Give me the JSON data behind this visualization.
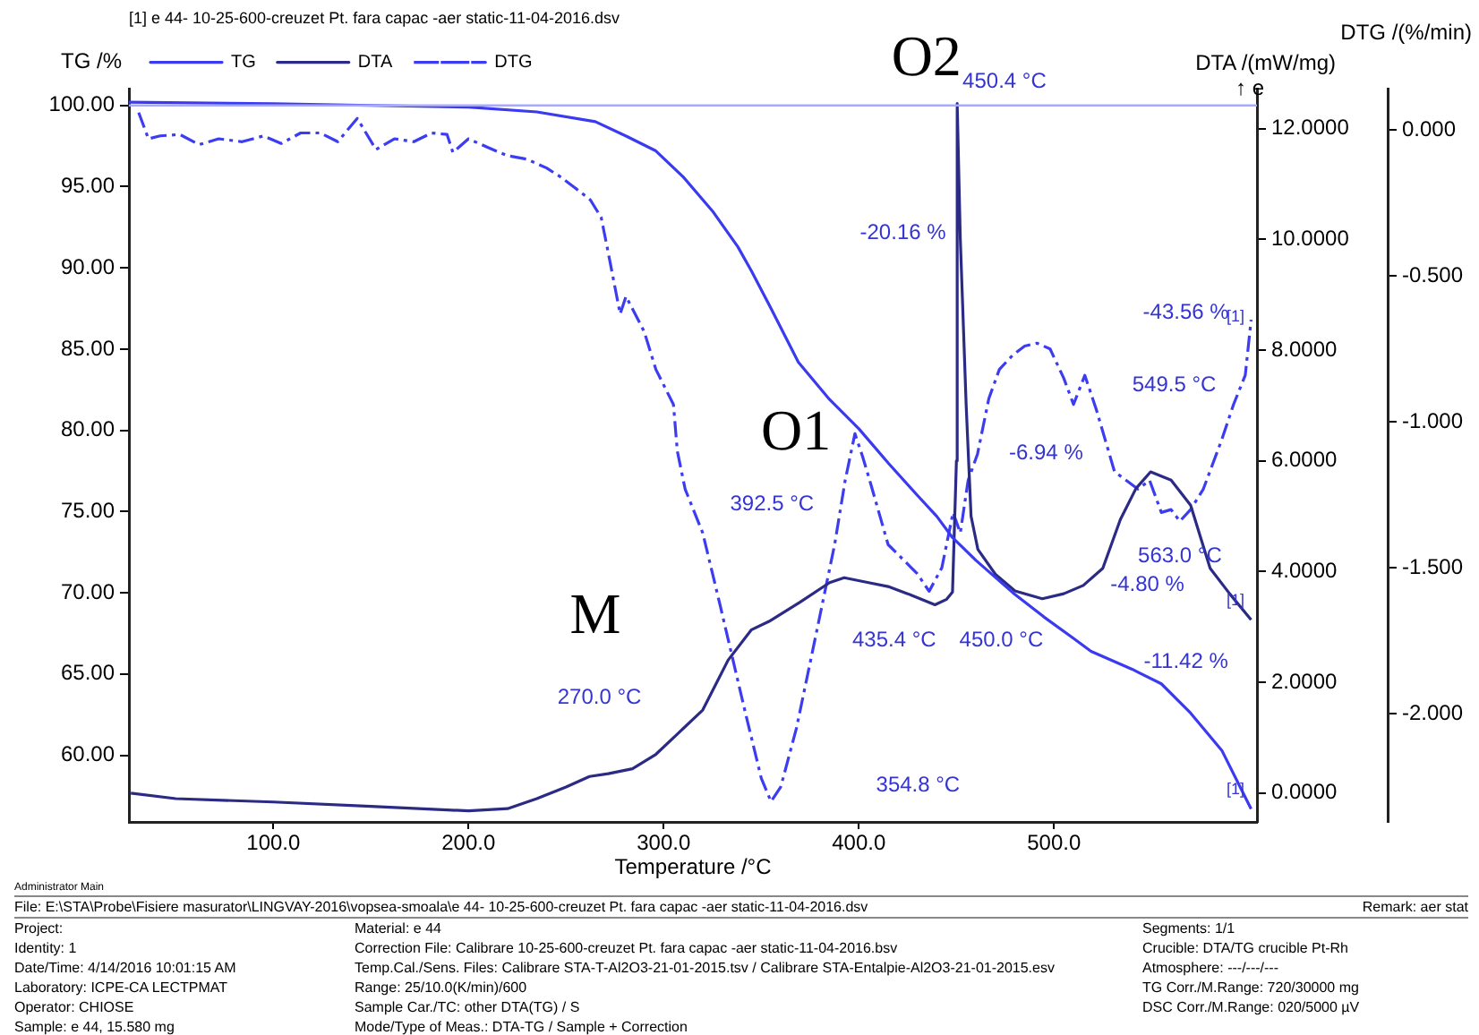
{
  "chart_data": {
    "type": "line",
    "xlabel": "Temperature /°C",
    "ylabel": "TG /%",
    "y2label": "DTA /(mW/mg)\n↑ e",
    "y3label": "DTG /(%/min)",
    "legend_title": "[1] e 44- 10-25-600-creuzet Pt. fara capac -aer static-11-04-2016.dsv",
    "legend": "top left",
    "xlim": [
      26,
      604
    ],
    "xticks": [
      {
        "value": 100,
        "label": "100.0"
      },
      {
        "value": 200,
        "label": "200.0"
      },
      {
        "value": 300,
        "label": "300.0"
      },
      {
        "value": 400,
        "label": "400.0"
      },
      {
        "value": 500,
        "label": "500.0"
      }
    ],
    "ylim": [
      55.9,
      101
    ],
    "yticks": [
      {
        "value": 60,
        "label": "60.00"
      },
      {
        "value": 65,
        "label": "65.00"
      },
      {
        "value": 70,
        "label": "70.00"
      },
      {
        "value": 75,
        "label": "75.00"
      },
      {
        "value": 80,
        "label": "80.00"
      },
      {
        "value": 85,
        "label": "85.00"
      },
      {
        "value": 90,
        "label": "90.00"
      },
      {
        "value": 95,
        "label": "95.00"
      },
      {
        "value": 100,
        "label": "100.00"
      }
    ],
    "y2lim": [
      -0.52,
      12.71
    ],
    "y2ticks": [
      {
        "value": 0,
        "label": "0.0000"
      },
      {
        "value": 2,
        "label": "2.0000"
      },
      {
        "value": 4,
        "label": "4.0000"
      },
      {
        "value": 6,
        "label": "6.0000"
      },
      {
        "value": 8,
        "label": "8.0000"
      },
      {
        "value": 10,
        "label": "10.0000"
      },
      {
        "value": 12,
        "label": "12.0000"
      }
    ],
    "y3lim": [
      -2.37,
      0.14
    ],
    "y3ticks": [
      {
        "value": 0,
        "label": "0.000"
      },
      {
        "value": -0.5,
        "label": "-0.500"
      },
      {
        "value": -1,
        "label": "-1.000"
      },
      {
        "value": -1.5,
        "label": "-1.500"
      },
      {
        "value": -2,
        "label": "-2.000"
      }
    ],
    "series": [
      {
        "name": "TG",
        "color": "#3a3af0",
        "axis": "y",
        "line_style": "solid",
        "x": [
          26,
          100,
          150,
          200,
          235,
          265,
          281,
          296,
          310,
          325,
          338,
          345,
          355,
          369,
          385,
          400,
          415,
          430,
          440,
          448,
          460,
          479,
          495,
          510,
          519,
          540,
          555,
          570,
          586,
          601
        ],
        "values": [
          100.2,
          100.1,
          100.0,
          99.9,
          99.6,
          99.0,
          98.1,
          97.2,
          95.6,
          93.5,
          91.3,
          89.8,
          87.5,
          84.2,
          81.9,
          80.1,
          78.0,
          76.0,
          74.7,
          73.4,
          72.0,
          70.0,
          68.5,
          67.2,
          66.4,
          65.3,
          64.4,
          62.6,
          60.3,
          56.7
        ]
      },
      {
        "name": "DTA",
        "color": "#2b2b86",
        "axis": "y2",
        "line_style": "solid",
        "x": [
          27,
          50,
          100,
          150,
          200,
          220,
          235,
          250,
          262,
          271.6,
          284,
          296,
          308,
          320,
          333,
          345,
          354,
          370,
          385,
          392.5,
          405,
          415,
          425,
          439,
          445,
          448,
          450,
          450.4,
          452,
          455,
          457.5,
          461,
          470,
          480,
          494,
          505,
          515,
          525,
          534,
          542,
          549.5,
          560,
          570,
          580,
          590,
          601
        ],
        "values": [
          0.0,
          -0.1,
          -0.16,
          -0.24,
          -0.32,
          -0.28,
          -0.1,
          0.11,
          0.3,
          0.35,
          0.44,
          0.7,
          1.1,
          1.5,
          2.4,
          2.95,
          3.1,
          3.45,
          3.8,
          3.89,
          3.8,
          3.73,
          3.6,
          3.4,
          3.5,
          3.63,
          6,
          12.45,
          10,
          7,
          5,
          4.4,
          3.95,
          3.65,
          3.51,
          3.6,
          3.75,
          4.06,
          4.94,
          5.5,
          5.8,
          5.65,
          5.2,
          4.06,
          3.6,
          3.13
        ]
      },
      {
        "name": "DTG",
        "color": "#3c3cf0",
        "axis": "y3",
        "line_style": "dashed",
        "x": [
          31,
          36,
          42,
          52,
          62,
          72,
          84,
          95,
          104,
          114,
          124,
          133,
          143,
          152.6,
          162,
          172,
          181,
          189,
          192,
          200,
          210,
          219.6,
          230,
          240,
          247,
          255,
          262.5,
          268,
          271.6,
          277.7,
          280.7,
          290,
          296,
          305,
          307,
          311,
          320,
          329,
          342,
          350,
          355,
          360,
          368,
          378,
          387.6,
          393,
          398,
          402,
          406,
          415,
          424,
          430,
          436,
          442.5,
          448.3,
          452,
          456,
          460.8,
          466.6,
          472,
          479,
          485,
          491.3,
          498,
          505,
          510,
          515.8,
          521.8,
          531,
          537,
          543,
          549,
          555,
          560,
          564.5,
          570,
          576.5,
          586,
          592,
          598,
          601
        ],
        "values": [
          0.06,
          -0.03,
          -0.02,
          -0.015,
          -0.05,
          -0.03,
          -0.04,
          -0.02,
          -0.046,
          -0.01,
          -0.01,
          -0.04,
          0.04,
          -0.067,
          -0.03,
          -0.04,
          -0.01,
          -0.015,
          -0.077,
          -0.03,
          -0.06,
          -0.087,
          -0.1,
          -0.13,
          -0.16,
          -0.2,
          -0.24,
          -0.3,
          -0.42,
          -0.63,
          -0.57,
          -0.69,
          -0.82,
          -0.94,
          -1.1,
          -1.23,
          -1.38,
          -1.63,
          -2.0,
          -2.22,
          -2.3,
          -2.25,
          -2.05,
          -1.73,
          -1.42,
          -1.2,
          -1.04,
          -1.12,
          -1.21,
          -1.42,
          -1.48,
          -1.52,
          -1.58,
          -1.5,
          -1.31,
          -1.38,
          -1.2,
          -1.11,
          -0.92,
          -0.82,
          -0.77,
          -0.74,
          -0.73,
          -0.75,
          -0.85,
          -0.94,
          -0.84,
          -0.96,
          -1.17,
          -1.2,
          -1.23,
          -1.2,
          -1.31,
          -1.3,
          -1.34,
          -1.3,
          -1.23,
          -1.06,
          -0.94,
          -0.84,
          -0.65
        ]
      }
    ],
    "ref_lines": [
      {
        "axis": "y",
        "value": 100,
        "color": "#a8a8ff"
      }
    ],
    "annotations": [
      "O2",
      "O1",
      "M",
      "450.4 °C",
      "392.5 °C",
      "435.4 °C",
      "450.0 °C",
      "354.8 °C",
      "270.0 °C",
      "-20.16 %",
      "-6.94 %",
      "-4.80 %",
      "-43.56 %",
      "-11.42 %",
      "549.5 °C",
      "563.0 °C",
      "[1]",
      "[1]",
      "[1]",
      "Administrator Main",
      "File: E:\\STA\\Probe\\Fisiere masurator\\LINGVAY-2016\\vopsea-smoala\\e 44- 10-25-600-creuzet Pt. fara capac -aer static-11-04-2016.dsv",
      "Remark: aer stat",
      "Project:",
      "Material: e 44",
      "Segments: 1/1",
      "Identity: 1",
      "Correction File: Calibrare 10-25-600-creuzet Pt. fara capac -aer static-11-04-2016.bsv",
      "Crucible: DTA/TG crucible Pt-Rh",
      "Date/Time: 4/14/2016 10:01:15 AM",
      "Temp.Cal./Sens. Files: Calibrare STA-T-Al2O3-21-01-2015.tsv / Calibrare STA-Entalpie-Al2O3-21-01-2015.esv",
      "Atmosphere: ---/---/---",
      "Laboratory: ICPE-CA LECTPMAT",
      "Range: 25/10.0(K/min)/600",
      "TG Corr./M.Range: 720/30000 mg",
      "Operator: CHIOSE",
      "Sample Car./TC: other DTA(TG) / S",
      "DSC Corr./M.Range: 020/5000 µV",
      "Sample: e 44, 15.580 mg",
      "Mode/Type of Meas.: DTA-TG / Sample + Correction"
    ]
  }
}
